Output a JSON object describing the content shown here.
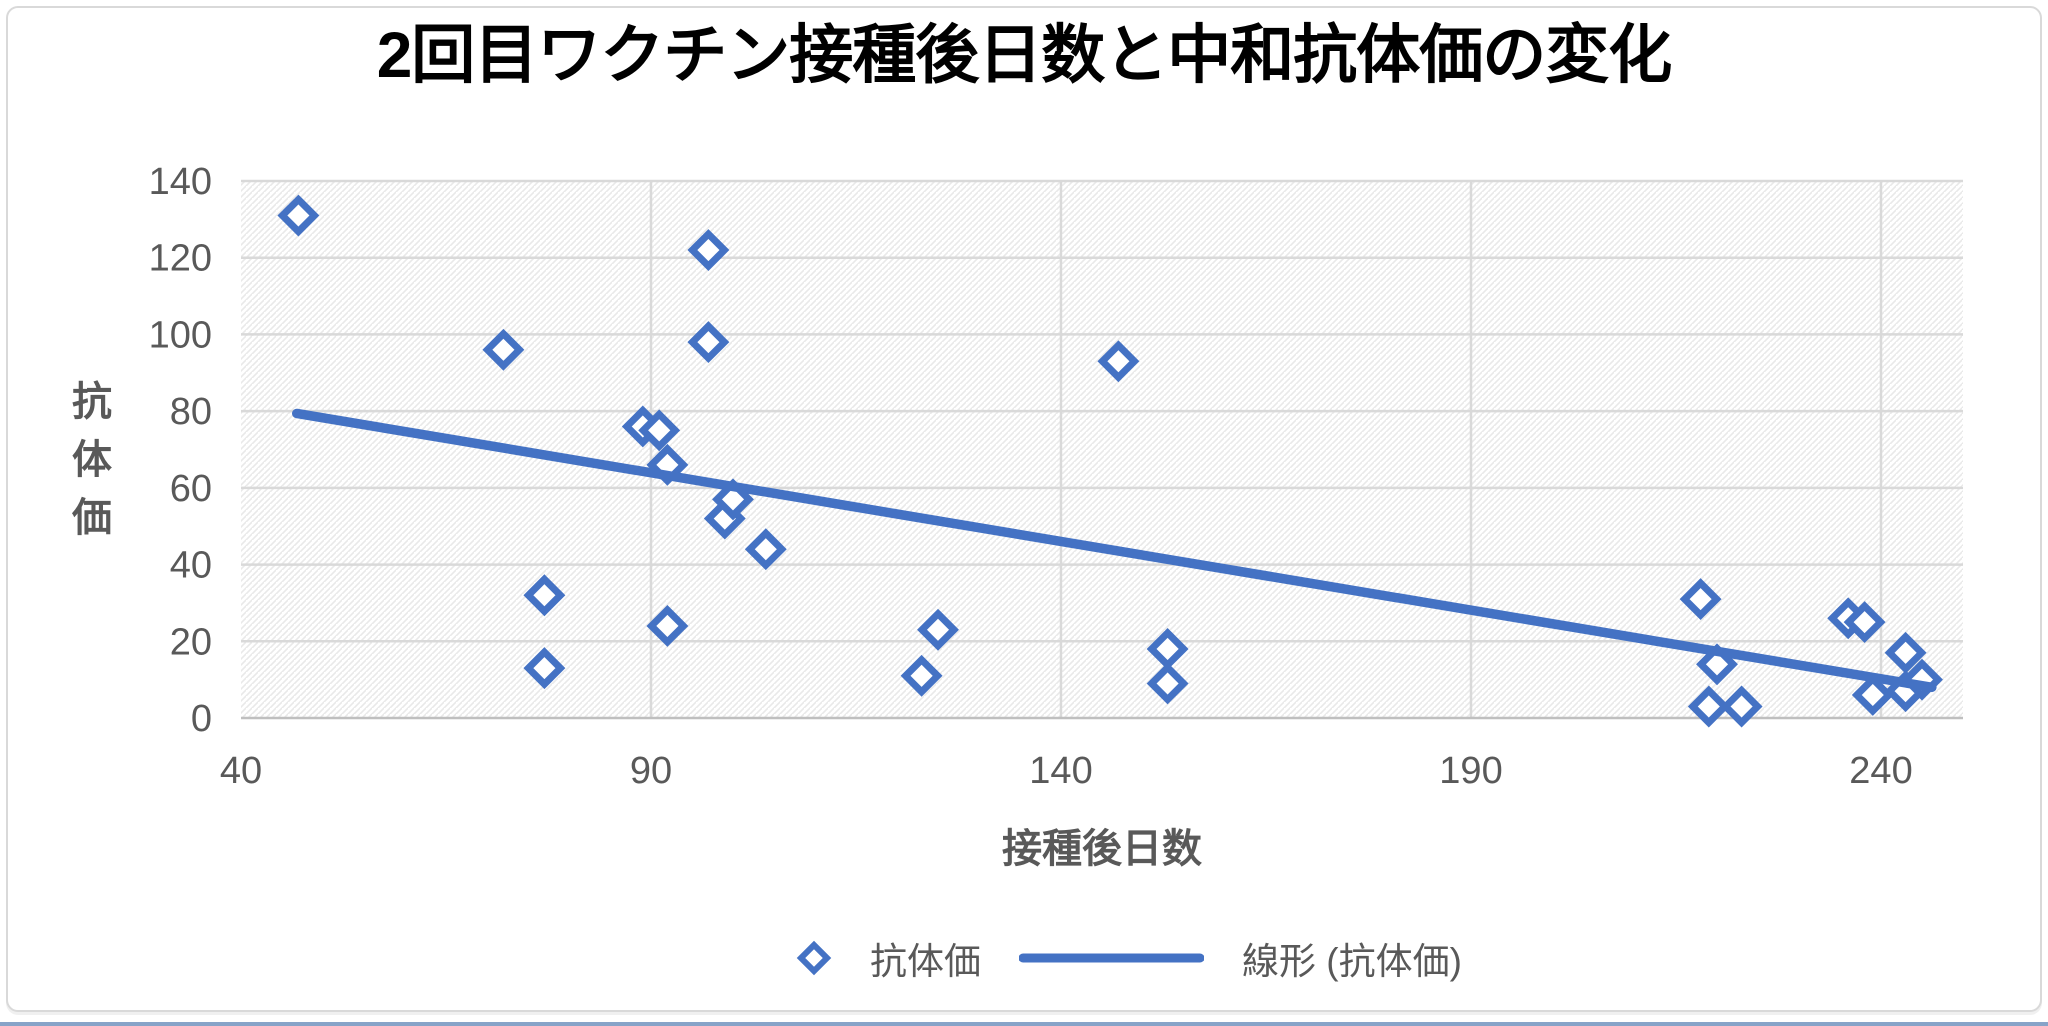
{
  "chart_data": {
    "type": "scatter",
    "title": "2回目ワクチン接種後日数と中和抗体価の変化",
    "xlabel": "接種後日数",
    "ylabel": "抗体価",
    "xlim": [
      40,
      250
    ],
    "ylim": [
      0,
      140
    ],
    "x_ticks": [
      40,
      90,
      140,
      190,
      240
    ],
    "y_ticks": [
      0,
      20,
      40,
      60,
      80,
      100,
      120,
      140
    ],
    "grid": true,
    "plot_background": "diagonal-hatch",
    "legend_position": "bottom",
    "series": [
      {
        "name": "抗体価",
        "type": "scatter",
        "marker": "open-diamond",
        "color": "#4472C4",
        "points": [
          [
            47,
            131
          ],
          [
            72,
            96
          ],
          [
            77,
            32
          ],
          [
            77,
            13
          ],
          [
            89,
            76
          ],
          [
            91,
            75
          ],
          [
            92,
            66
          ],
          [
            92,
            24
          ],
          [
            97,
            122
          ],
          [
            97,
            98
          ],
          [
            99,
            52
          ],
          [
            100,
            57
          ],
          [
            104,
            44
          ],
          [
            123,
            11
          ],
          [
            125,
            23
          ],
          [
            147,
            93
          ],
          [
            153,
            18
          ],
          [
            153,
            9
          ],
          [
            218,
            31
          ],
          [
            219,
            3
          ],
          [
            220,
            14
          ],
          [
            223,
            3
          ],
          [
            236,
            26
          ],
          [
            238,
            25
          ],
          [
            239,
            6
          ],
          [
            243,
            17
          ],
          [
            243,
            7
          ],
          [
            245,
            10
          ]
        ]
      },
      {
        "name": "線形 (抗体価)",
        "type": "trendline",
        "color": "#4472C4",
        "x1": 46.8,
        "y1": 79.4,
        "x2": 246.2,
        "y2": 8.0
      }
    ]
  },
  "colors": {
    "accent": "#4472C4",
    "gridline": "#d9d9d9",
    "axis_line": "#bfbfbf",
    "tick_text": "#595959",
    "title_text": "#000000",
    "hatch_stripe": "#e9e9e9",
    "frame_border": "#d9d9d9",
    "bottom_strip": "#87a3c8"
  }
}
